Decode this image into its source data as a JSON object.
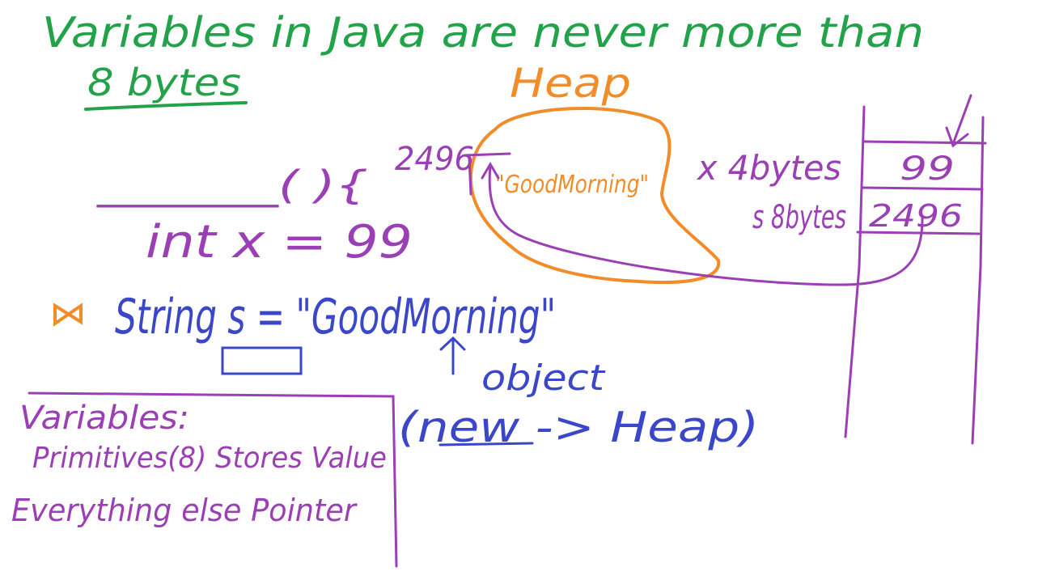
{
  "colors": {
    "green": "#22a34a",
    "orange": "#f28c28",
    "purple": "#9b3fb5",
    "blue": "#3a47c8",
    "background": "#ffffff"
  },
  "title": {
    "line1": "Variables in Java are never more than",
    "line2": "8 bytes"
  },
  "code": {
    "method_sig": "_______( ){",
    "int_decl": "int x = 99",
    "string_decl": "String s = \"GoodMorning\""
  },
  "heap": {
    "label": "Heap",
    "object_text": "\"GoodMorning\"",
    "address": "2496"
  },
  "stack": {
    "x_label": "x 4bytes",
    "s_label": "s 8bytes",
    "x_value": "99",
    "s_value": "2496"
  },
  "notes": {
    "object_label": "object",
    "new_heap": "(new -> Heap)",
    "summary_title": "Variables:",
    "summary_primitives": "Primitives(8) Stores Value",
    "summary_else": "Everything else Pointer"
  }
}
